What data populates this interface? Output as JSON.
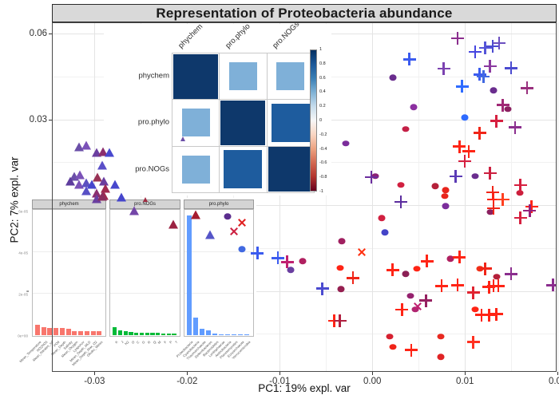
{
  "figure": {
    "title": "Representation of Proteobacteria abundance"
  },
  "chart_data": {
    "type": "scatter",
    "title": "Representation of Proteobacteria abundance",
    "xlabel": "PC1: 19% expl. var",
    "ylabel": "PC2: 7% expl. var",
    "xlim": [
      -0.0346,
      0.0199
    ],
    "ylim": [
      -0.0583,
      0.0639
    ],
    "x_ticks": [
      {
        "v": -0.03,
        "label": "-0.03"
      },
      {
        "v": -0.02,
        "label": "-0.02"
      },
      {
        "v": -0.01,
        "label": "-0.01"
      },
      {
        "v": 0.0,
        "label": "0.00"
      },
      {
        "v": 0.01,
        "label": "0.01"
      },
      {
        "v": 0.02,
        "label": "0.02"
      }
    ],
    "y_ticks": [
      {
        "v": 0.06,
        "label": "0.06"
      },
      {
        "v": 0.03,
        "label": "0.03"
      },
      {
        "v": 0.0,
        "label": "0.00"
      },
      {
        "v": -0.03,
        "label": "-0.03"
      }
    ],
    "x_minor_ticks": [
      -0.025,
      -0.015,
      -0.005,
      0.005,
      0.015
    ],
    "y_minor_ticks": [
      0.045,
      0.015,
      -0.015,
      -0.045
    ],
    "points": [
      {
        "x": -0.0317,
        "y": 0.0205,
        "shape": "triangle",
        "color": "#6b4fa8"
      },
      {
        "x": -0.0309,
        "y": 0.021,
        "shape": "triangle",
        "color": "#7b52b8"
      },
      {
        "x": -0.0298,
        "y": 0.0185,
        "shape": "triangle",
        "color": "#6b3fa0"
      },
      {
        "x": -0.0291,
        "y": 0.0188,
        "shape": "triangle",
        "color": "#8b2e6e"
      },
      {
        "x": -0.0284,
        "y": 0.0185,
        "shape": "triangle",
        "color": "#4848ce"
      },
      {
        "x": -0.0292,
        "y": 0.014,
        "shape": "triangle",
        "color": "#5a4fc8"
      },
      {
        "x": -0.0322,
        "y": 0.0101,
        "shape": "triangle",
        "color": "#6b4fa8"
      },
      {
        "x": -0.0316,
        "y": 0.0107,
        "shape": "triangle",
        "color": "#7b52b8"
      },
      {
        "x": -0.0326,
        "y": 0.0084,
        "shape": "triangle",
        "color": "#5e3d9e"
      },
      {
        "x": -0.0317,
        "y": 0.0073,
        "shape": "triangle",
        "color": "#7b52b8"
      },
      {
        "x": -0.0309,
        "y": 0.0079,
        "shape": "triangle",
        "color": "#5c50c0"
      },
      {
        "x": -0.0303,
        "y": 0.0073,
        "shape": "triangle",
        "color": "#4646cc"
      },
      {
        "x": -0.0297,
        "y": 0.0098,
        "shape": "triangle",
        "color": "#993355"
      },
      {
        "x": -0.029,
        "y": 0.0084,
        "shape": "triangle",
        "color": "#6a3fa0"
      },
      {
        "x": -0.0288,
        "y": 0.0059,
        "shape": "triangle",
        "color": "#a02a50"
      },
      {
        "x": -0.0278,
        "y": 0.0073,
        "shape": "triangle",
        "color": "#4747cd"
      },
      {
        "x": -0.0309,
        "y": 0.005,
        "shape": "triangle",
        "color": "#5850c5"
      },
      {
        "x": -0.0298,
        "y": 0.0042,
        "shape": "triangle",
        "color": "#8b2e6e"
      },
      {
        "x": -0.029,
        "y": 0.0034,
        "shape": "triangle",
        "color": "#a02a50"
      },
      {
        "x": -0.0271,
        "y": 0.0028,
        "shape": "triangle",
        "color": "#4646cc"
      },
      {
        "x": -0.0298,
        "y": 0.0022,
        "shape": "triangle",
        "color": "#6a3fa0"
      },
      {
        "x": -0.0292,
        "y": 0.0031,
        "shape": "triangle",
        "color": "#8b2e5e"
      },
      {
        "x": -0.0245,
        "y": 0.002,
        "shape": "triangle",
        "color": "#a02a40",
        "small": true
      },
      {
        "x": -0.0205,
        "y": 0.0233,
        "shape": "triangle",
        "color": "#6b4fa8",
        "small": true
      },
      {
        "x": -0.0257,
        "y": -0.002,
        "shape": "triangle",
        "color": "#7446a8"
      },
      {
        "x": -0.0215,
        "y": -0.0067,
        "shape": "triangle",
        "color": "#9b2242"
      },
      {
        "x": -0.0191,
        "y": -0.0034,
        "shape": "triangle",
        "color": "#a51c30"
      },
      {
        "x": -0.0175,
        "y": -0.0104,
        "shape": "triangle",
        "color": "#5555c8"
      },
      {
        "x": -0.0156,
        "y": -0.0039,
        "shape": "circle",
        "color": "#5b2d8e"
      },
      {
        "x": -0.0141,
        "y": -0.0154,
        "shape": "circle",
        "color": "#4169e1"
      },
      {
        "x": -0.0088,
        "y": -0.0227,
        "shape": "circle",
        "color": "#6a3fa0"
      },
      {
        "x": -0.0075,
        "y": -0.0196,
        "shape": "circle",
        "color": "#b02060"
      },
      {
        "x": 0.0022,
        "y": 0.0446,
        "shape": "circle",
        "color": "#6a2d8e"
      },
      {
        "x": 0.0045,
        "y": 0.0342,
        "shape": "circle",
        "color": "#8b2fa0"
      },
      {
        "x": 0.0036,
        "y": 0.0266,
        "shape": "circle",
        "color": "#c42046"
      },
      {
        "x": -0.0029,
        "y": 0.0216,
        "shape": "circle",
        "color": "#7b2d9b"
      },
      {
        "x": 0.0131,
        "y": 0.0401,
        "shape": "circle",
        "color": "#6a2d8e"
      },
      {
        "x": 0.0146,
        "y": 0.0336,
        "shape": "circle",
        "color": "#8b2060"
      },
      {
        "x": 0.01,
        "y": 0.0306,
        "shape": "circle",
        "color": "#2e6bff"
      },
      {
        "x": 0.0111,
        "y": 0.0101,
        "shape": "circle",
        "color": "#6a2d8e"
      },
      {
        "x": 0.0003,
        "y": 0.0101,
        "shape": "circle",
        "color": "#8b2075"
      },
      {
        "x": 0.0031,
        "y": 0.007,
        "shape": "circle",
        "color": "#d12040"
      },
      {
        "x": 0.0068,
        "y": 0.0067,
        "shape": "circle",
        "color": "#b5203a"
      },
      {
        "x": 0.0079,
        "y": 0.0053,
        "shape": "circle",
        "color": "#e8251c"
      },
      {
        "x": 0.0078,
        "y": 0.0031,
        "shape": "circle",
        "color": "#e8251c"
      },
      {
        "x": 0.0159,
        "y": 0.0042,
        "shape": "circle",
        "color": "#cc1f3c"
      },
      {
        "x": 0.0079,
        "y": -0.0003,
        "shape": "circle",
        "color": "#7b2d9b"
      },
      {
        "x": 0.0127,
        "y": -0.0025,
        "shape": "circle",
        "color": "#8b2060"
      },
      {
        "x": 0.001,
        "y": -0.0045,
        "shape": "circle",
        "color": "#d12040"
      },
      {
        "x": 0.0014,
        "y": -0.0095,
        "shape": "circle",
        "color": "#4444c8"
      },
      {
        "x": -0.0033,
        "y": -0.0126,
        "shape": "circle",
        "color": "#a02060"
      },
      {
        "x": -0.0035,
        "y": -0.0219,
        "shape": "circle",
        "color": "#ff2415"
      },
      {
        "x": -0.0034,
        "y": -0.0294,
        "shape": "circle",
        "color": "#951f50"
      },
      {
        "x": 0.0048,
        "y": -0.0222,
        "shape": "circle",
        "color": "#ff2415"
      },
      {
        "x": 0.0036,
        "y": -0.0241,
        "shape": "circle",
        "color": "#8b2055"
      },
      {
        "x": 0.0084,
        "y": -0.0188,
        "shape": "circle",
        "color": "#b02060"
      },
      {
        "x": 0.0116,
        "y": -0.0222,
        "shape": "circle",
        "color": "#f03018"
      },
      {
        "x": 0.0134,
        "y": -0.025,
        "shape": "circle",
        "color": "#b5203a"
      },
      {
        "x": 0.0041,
        "y": -0.0317,
        "shape": "circle",
        "color": "#95216e"
      },
      {
        "x": 0.0046,
        "y": -0.0365,
        "shape": "circle",
        "color": "#b02570"
      },
      {
        "x": 0.0019,
        "y": -0.046,
        "shape": "circle",
        "color": "#d62030"
      },
      {
        "x": 0.0022,
        "y": -0.0496,
        "shape": "circle",
        "color": "#f02418"
      },
      {
        "x": 0.0074,
        "y": -0.046,
        "shape": "circle",
        "color": "#e82920"
      },
      {
        "x": 0.0074,
        "y": -0.053,
        "shape": "circle",
        "color": "#e02325"
      },
      {
        "x": 0.0111,
        "y": -0.0365,
        "shape": "circle",
        "color": "#ff2415"
      },
      {
        "x": 0.0092,
        "y": 0.0583,
        "shape": "plus",
        "color": "#8b2e8e"
      },
      {
        "x": 0.0111,
        "y": 0.0536,
        "shape": "plus",
        "color": "#4646e0"
      },
      {
        "x": 0.0122,
        "y": 0.055,
        "shape": "plus",
        "color": "#5555d8"
      },
      {
        "x": 0.013,
        "y": 0.0555,
        "shape": "plus",
        "color": "#4b4bd0"
      },
      {
        "x": 0.0137,
        "y": 0.0566,
        "shape": "plus",
        "color": "#6b4fc0"
      },
      {
        "x": 0.004,
        "y": 0.051,
        "shape": "plus",
        "color": "#3b5bef"
      },
      {
        "x": 0.0077,
        "y": 0.0477,
        "shape": "plus",
        "color": "#7b42b0"
      },
      {
        "x": 0.0116,
        "y": 0.0457,
        "shape": "plus",
        "color": "#3b5bef"
      },
      {
        "x": 0.012,
        "y": 0.0449,
        "shape": "plus",
        "color": "#4169e1"
      },
      {
        "x": 0.0127,
        "y": 0.0485,
        "shape": "plus",
        "color": "#8b3aa0"
      },
      {
        "x": 0.015,
        "y": 0.0479,
        "shape": "plus",
        "color": "#4b4bd0"
      },
      {
        "x": 0.0097,
        "y": 0.0415,
        "shape": "plus",
        "color": "#2e6bff"
      },
      {
        "x": 0.0167,
        "y": 0.0409,
        "shape": "plus",
        "color": "#99307e"
      },
      {
        "x": 0.0141,
        "y": 0.035,
        "shape": "plus",
        "color": "#a02975"
      },
      {
        "x": 0.0134,
        "y": 0.0294,
        "shape": "plus",
        "color": "#d62040"
      },
      {
        "x": 0.0154,
        "y": 0.0272,
        "shape": "plus",
        "color": "#8b2e8e"
      },
      {
        "x": 0.0116,
        "y": 0.0252,
        "shape": "plus",
        "color": "#f02518"
      },
      {
        "x": 0.0094,
        "y": 0.0205,
        "shape": "plus",
        "color": "#ff2415"
      },
      {
        "x": 0.0104,
        "y": 0.0188,
        "shape": "plus",
        "color": "#ff2415"
      },
      {
        "x": 0.01,
        "y": 0.0154,
        "shape": "plus",
        "color": "#d62040"
      },
      {
        "x": 0.009,
        "y": 0.0101,
        "shape": "plus",
        "color": "#5b3bb5"
      },
      {
        "x": 0.0127,
        "y": 0.0112,
        "shape": "plus",
        "color": "#cc2040"
      },
      {
        "x": -0.0001,
        "y": 0.0098,
        "shape": "plus",
        "color": "#6b2d9e"
      },
      {
        "x": 0.016,
        "y": 0.007,
        "shape": "plus",
        "color": "#d62040"
      },
      {
        "x": 0.013,
        "y": 0.0045,
        "shape": "plus",
        "color": "#f02518"
      },
      {
        "x": 0.0131,
        "y": 0.002,
        "shape": "plus",
        "color": "#ff2415"
      },
      {
        "x": 0.0141,
        "y": 0.002,
        "shape": "plus",
        "color": "#ff4020"
      },
      {
        "x": 0.0031,
        "y": 0.0011,
        "shape": "plus",
        "color": "#5b2d9e"
      },
      {
        "x": 0.0172,
        "y": -0.0006,
        "shape": "plus",
        "color": "#ff2415"
      },
      {
        "x": 0.0131,
        "y": -0.0011,
        "shape": "plus",
        "color": "#f02518"
      },
      {
        "x": 0.017,
        "y": -0.002,
        "shape": "plus",
        "color": "#95207b"
      },
      {
        "x": 0.016,
        "y": -0.0045,
        "shape": "plus",
        "color": "#d62040"
      },
      {
        "x": -0.0124,
        "y": -0.0168,
        "shape": "plus",
        "color": "#3b5bef"
      },
      {
        "x": -0.0102,
        "y": -0.0185,
        "shape": "plus",
        "color": "#3b5bef"
      },
      {
        "x": -0.0092,
        "y": -0.0199,
        "shape": "plus",
        "color": "#c02070"
      },
      {
        "x": -0.0054,
        "y": -0.0292,
        "shape": "plus",
        "color": "#4b4bd0"
      },
      {
        "x": -0.0041,
        "y": -0.0404,
        "shape": "plus",
        "color": "#ff2415"
      },
      {
        "x": -0.0021,
        "y": -0.0255,
        "shape": "plus",
        "color": "#f02518"
      },
      {
        "x": 0.0022,
        "y": -0.0227,
        "shape": "plus",
        "color": "#ff2415"
      },
      {
        "x": 0.0059,
        "y": -0.0196,
        "shape": "plus",
        "color": "#ff2415"
      },
      {
        "x": 0.0094,
        "y": -0.0182,
        "shape": "plus",
        "color": "#ff2415"
      },
      {
        "x": 0.0122,
        "y": -0.0222,
        "shape": "plus",
        "color": "#f02518"
      },
      {
        "x": 0.015,
        "y": -0.0241,
        "shape": "plus",
        "color": "#8b2e8e"
      },
      {
        "x": 0.0075,
        "y": -0.0283,
        "shape": "plus",
        "color": "#ff2415"
      },
      {
        "x": 0.0092,
        "y": -0.028,
        "shape": "plus",
        "color": "#ff2415"
      },
      {
        "x": 0.0109,
        "y": -0.0306,
        "shape": "plus",
        "color": "#e02330"
      },
      {
        "x": 0.0126,
        "y": -0.0286,
        "shape": "plus",
        "color": "#ff2415"
      },
      {
        "x": 0.0131,
        "y": -0.0283,
        "shape": "plus",
        "color": "#ff2415"
      },
      {
        "x": 0.0136,
        "y": -0.0283,
        "shape": "plus",
        "color": "#ff2415"
      },
      {
        "x": 0.0058,
        "y": -0.0334,
        "shape": "plus",
        "color": "#952060"
      },
      {
        "x": 0.0032,
        "y": -0.0365,
        "shape": "plus",
        "color": "#ff2415"
      },
      {
        "x": -0.0035,
        "y": -0.0404,
        "shape": "plus",
        "color": "#b02040"
      },
      {
        "x": 0.0118,
        "y": -0.0384,
        "shape": "plus",
        "color": "#ff2415"
      },
      {
        "x": 0.0126,
        "y": -0.0384,
        "shape": "plus",
        "color": "#ff2415"
      },
      {
        "x": 0.0134,
        "y": -0.0381,
        "shape": "plus",
        "color": "#ff2415"
      },
      {
        "x": 0.0042,
        "y": -0.0507,
        "shape": "plus",
        "color": "#ff2415"
      },
      {
        "x": 0.0109,
        "y": -0.0479,
        "shape": "plus",
        "color": "#ff3020"
      },
      {
        "x": 0.0195,
        "y": -0.028,
        "shape": "plus",
        "color": "#8b2e8e"
      },
      {
        "x": -0.0141,
        "y": -0.0062,
        "shape": "x",
        "color": "#e02020"
      },
      {
        "x": -0.0149,
        "y": -0.0093,
        "shape": "x",
        "color": "#cc2040"
      },
      {
        "x": -0.0011,
        "y": -0.0165,
        "shape": "x",
        "color": "#ff3010"
      },
      {
        "x": 0.0049,
        "y": -0.0353,
        "shape": "x",
        "color": "#c02070"
      }
    ],
    "insets": {
      "correlation_matrix": {
        "labels": [
          "phychem",
          "pro.phylo",
          "pro.NOGs"
        ],
        "cells": [
          {
            "row": 0,
            "col": 0,
            "r": 1.0,
            "size": 1.0,
            "color": "#0e386b"
          },
          {
            "row": 0,
            "col": 1,
            "r": 0.4,
            "size": 0.62,
            "color": "#7fb0d8"
          },
          {
            "row": 0,
            "col": 2,
            "r": 0.4,
            "size": 0.62,
            "color": "#7fb0d8"
          },
          {
            "row": 1,
            "col": 0,
            "r": 0.4,
            "size": 0.62,
            "color": "#7fb0d8"
          },
          {
            "row": 1,
            "col": 1,
            "r": 1.0,
            "size": 1.0,
            "color": "#0e386b"
          },
          {
            "row": 1,
            "col": 2,
            "r": 0.75,
            "size": 0.86,
            "color": "#1e5c9e"
          },
          {
            "row": 2,
            "col": 0,
            "r": 0.4,
            "size": 0.62,
            "color": "#7fb0d8"
          },
          {
            "row": 2,
            "col": 1,
            "r": 0.75,
            "size": 0.86,
            "color": "#1e5c9e"
          },
          {
            "row": 2,
            "col": 2,
            "r": 1.0,
            "size": 1.0,
            "color": "#0e386b"
          }
        ],
        "colorbar_ticks": [
          "1",
          "0.8",
          "0.6",
          "0.4",
          "0.2",
          "0",
          "-0.2",
          "-0.4",
          "-0.6",
          "-0.8",
          "-1"
        ]
      },
      "loading_bars": {
        "y_axis_ticks": [
          "6e-05",
          "4e-05",
          "2e-05",
          "0e+00"
        ],
        "ymax": 6.2e-05,
        "panels": [
          {
            "title": "phychem",
            "bar_color": "#f8766d",
            "labels": [
              "Mean_Temperature",
              "NO2NO3",
              "Mean_Nitrates_srf",
              "PO4",
              "Mean_Depth",
              "Salinity",
              "Mean_Oxygen",
              "Lyapunov",
              "Mean_Depth_MLD",
              "Mean_Depth_Max_O2",
              "Okubo_Weiss"
            ],
            "values": [
              5e-06,
              3.8e-06,
              3.5e-06,
              3.5e-06,
              3.5e-06,
              3.1e-06,
              1.9e-06,
              1.9e-06,
              1.9e-06,
              1.9e-06,
              1.9e-06
            ]
          },
          {
            "title": "pro.NOGs",
            "bar_color": "#00ba38",
            "labels": [
              "K",
              "J",
              "N2",
              "O",
              "C",
              "G",
              "R",
              "Q",
              "M",
              "F",
              "P",
              "T"
            ],
            "values": [
              3.8e-06,
              2.3e-06,
              1.9e-06,
              1.5e-06,
              1.2e-06,
              1.2e-06,
              1.2e-06,
              1.2e-06,
              1.2e-06,
              8e-07,
              8e-07,
              8e-07
            ]
          },
          {
            "title": "pro.phylo",
            "bar_color": "#619cff",
            "labels": [
              "Proteobacteria",
              "Cyanobacteria",
              "Thaumarchaeota",
              "Deferribacteres",
              "Bacteroidetes",
              "Lentisphaerae",
              "Actinobacteria",
              "Planctomycetes",
              "Euryarchaeota",
              "Verrucomicrobia"
            ],
            "values": [
              5.9e-05,
              8.8e-06,
              3.1e-06,
              2.3e-06,
              8e-07,
              4e-07,
              4e-07,
              4e-07,
              4e-07,
              4e-07
            ]
          }
        ]
      }
    }
  }
}
